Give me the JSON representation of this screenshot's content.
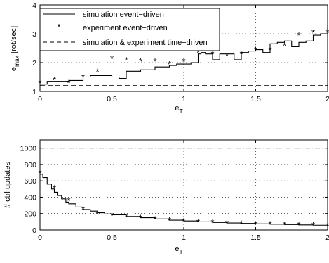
{
  "chart_data": [
    {
      "type": "line",
      "xlabel_main": "e",
      "xlabel_sub": "T",
      "ylabel_main": "e",
      "ylabel_sub": "max",
      "ylabel_unit": "[rot/sec]",
      "xlim": [
        0,
        2
      ],
      "ylim": [
        1,
        4
      ],
      "xticks": [
        "0",
        "0.5",
        "1",
        "1.5",
        "2"
      ],
      "xtick_values": [
        0,
        0.5,
        1,
        1.5,
        2
      ],
      "yticks": [
        "1",
        "2",
        "3",
        "4"
      ],
      "ytick_values": [
        1,
        2,
        3,
        4
      ],
      "grid": true,
      "legend_position": "top-left",
      "series": [
        {
          "name": "simulation event−driven",
          "style": "solid-step",
          "x": [
            0,
            0.05,
            0.1,
            0.2,
            0.3,
            0.35,
            0.5,
            0.55,
            0.6,
            0.7,
            0.8,
            0.9,
            0.95,
            1.05,
            1.1,
            1.12,
            1.15,
            1.2,
            1.25,
            1.3,
            1.35,
            1.4,
            1.45,
            1.5,
            1.55,
            1.6,
            1.65,
            1.7,
            1.75,
            1.8,
            1.85,
            1.9,
            1.95,
            1.98,
            2.0
          ],
          "y": [
            1.25,
            1.35,
            1.35,
            1.38,
            1.5,
            1.55,
            1.5,
            1.45,
            1.7,
            1.75,
            1.85,
            1.9,
            1.95,
            2.0,
            2.3,
            2.35,
            2.3,
            2.1,
            2.3,
            2.3,
            2.1,
            2.35,
            2.4,
            2.45,
            2.35,
            2.65,
            2.7,
            2.75,
            2.55,
            2.7,
            2.75,
            2.95,
            3.0,
            3.0,
            3.3
          ]
        },
        {
          "name": "experiment event−driven",
          "style": "star-marker",
          "x": [
            0,
            0.1,
            0.2,
            0.3,
            0.4,
            0.5,
            0.6,
            0.7,
            0.8,
            0.9,
            1.0,
            1.1,
            1.2,
            1.3,
            1.4,
            1.5,
            1.6,
            1.7,
            1.8,
            1.9,
            2.0
          ],
          "y": [
            1.3,
            1.4,
            1.3,
            1.5,
            1.7,
            2.15,
            2.1,
            2.05,
            2.05,
            1.95,
            2.05,
            2.35,
            2.3,
            2.25,
            2.3,
            2.45,
            2.45,
            2.6,
            2.95,
            3.05,
            3.05
          ]
        },
        {
          "name": "simulation & experiment time−driven",
          "style": "dashed",
          "x": [
            0,
            2
          ],
          "y": [
            1.2,
            1.2
          ]
        }
      ]
    },
    {
      "type": "line",
      "xlabel_main": "e",
      "xlabel_sub": "T",
      "ylabel": "# ctrl updates",
      "xlim": [
        0,
        2
      ],
      "ylim": [
        0,
        1100
      ],
      "xticks": [
        "0",
        "0.5",
        "1",
        "1.5",
        "2"
      ],
      "xtick_values": [
        0,
        0.5,
        1,
        1.5,
        2
      ],
      "yticks": [
        "0",
        "200",
        "400",
        "600",
        "800",
        "1000"
      ],
      "ytick_values": [
        0,
        200,
        400,
        600,
        800,
        1000
      ],
      "grid": true,
      "series": [
        {
          "style": "solid-step",
          "x": [
            0,
            0.02,
            0.05,
            0.08,
            0.1,
            0.12,
            0.15,
            0.18,
            0.2,
            0.25,
            0.3,
            0.35,
            0.4,
            0.45,
            0.5,
            0.6,
            0.7,
            0.8,
            0.9,
            1.0,
            1.1,
            1.2,
            1.3,
            1.4,
            1.5,
            1.6,
            1.7,
            1.8,
            1.9,
            2.0
          ],
          "y": [
            680,
            640,
            560,
            500,
            460,
            420,
            380,
            340,
            320,
            280,
            250,
            230,
            210,
            195,
            185,
            165,
            150,
            135,
            120,
            110,
            100,
            92,
            85,
            80,
            75,
            70,
            66,
            62,
            58,
            55
          ]
        },
        {
          "style": "star-marker",
          "x": [
            0,
            0.1,
            0.2,
            0.3,
            0.4,
            0.5,
            0.6,
            0.7,
            0.8,
            0.9,
            1.0,
            1.1,
            1.2,
            1.3,
            1.4,
            1.5,
            1.6,
            1.7,
            1.8,
            1.9,
            2.0
          ],
          "y": [
            700,
            510,
            360,
            255,
            195,
            180,
            165,
            150,
            135,
            120,
            110,
            100,
            95,
            85,
            80,
            75,
            72,
            68,
            65,
            62,
            58
          ]
        },
        {
          "style": "dash-dot",
          "x": [
            0,
            2
          ],
          "y": [
            1000,
            1000
          ]
        }
      ]
    }
  ]
}
